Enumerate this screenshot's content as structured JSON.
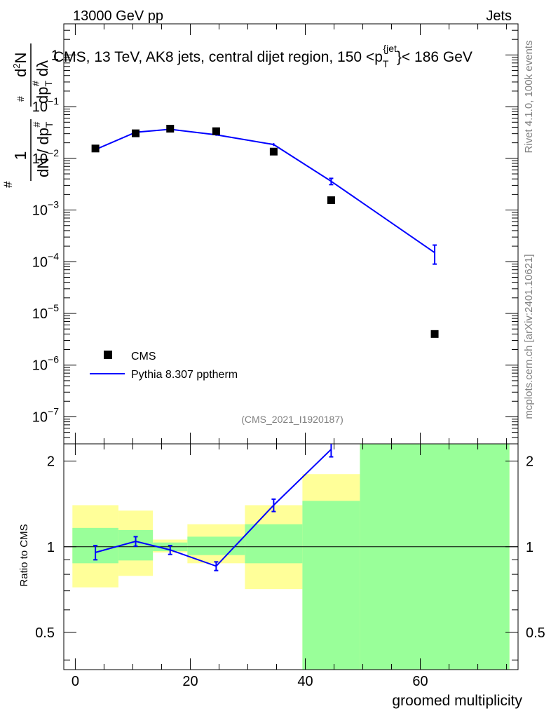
{
  "header": {
    "energy_label": "13000 GeV pp",
    "category_label": "Jets"
  },
  "side": {
    "rivet_label": "Rivet 4.1.0,  100k events",
    "site_label": "mcplots.cern.ch [arXiv:2401.10621]"
  },
  "chart_data": {
    "type": "scatter",
    "title": "CMS, 13 TeV, AK8 jets, central dijet region, 150 <p",
    "title_sub": "T",
    "title_sup": "{jet",
    "title_tail": "}< 186 GeV",
    "analysis_id": "(CMS_2021_I1920187)",
    "xlabel": "groomed multiplicity",
    "ylabel_ratio": "Ratio to CMS",
    "ylabel_parts": {
      "num1": "1",
      "den1": "dN / dp",
      "den1_sub": "T",
      "den1_sup": "#",
      "hash1": "#",
      "num2": "d",
      "num2_sup": "2",
      "num2_tail": "N",
      "den2": "dp",
      "den2_sub": "T",
      "den2_sup": "#",
      "den2_tail": "dλ",
      "hash2": "#"
    },
    "xlim": [
      -2,
      77
    ],
    "xticks": [
      0,
      20,
      40,
      60
    ],
    "ylim_log": [
      3e-08,
      4.0
    ],
    "yticks_log": [
      {
        "value": 1,
        "label": "1"
      },
      {
        "value": 0.1,
        "label": "10",
        "exp": "−1"
      },
      {
        "value": 0.01,
        "label": "10",
        "exp": "−2"
      },
      {
        "value": 0.001,
        "label": "10",
        "exp": "−3"
      },
      {
        "value": 0.0001,
        "label": "10",
        "exp": "−4"
      },
      {
        "value": 1e-05,
        "label": "10",
        "exp": "−5"
      },
      {
        "value": 1e-06,
        "label": "10",
        "exp": "−6"
      },
      {
        "value": 1e-07,
        "label": "10",
        "exp": "−7"
      }
    ],
    "ratio_ylim": [
      0.37,
      2.3
    ],
    "ratio_yticks": [
      {
        "value": 0.5,
        "label": "0.5"
      },
      {
        "value": 1,
        "label": "1"
      },
      {
        "value": 2,
        "label": "2"
      }
    ],
    "legend": [
      {
        "name": "CMS",
        "style": "marker"
      },
      {
        "name": "Pythia 8.307 pptherm",
        "style": "line",
        "color": "#0000ff"
      }
    ],
    "series": [
      {
        "name": "CMS",
        "color": "#000000",
        "x": [
          3.5,
          10.5,
          16.5,
          24.5,
          34.5,
          44.5,
          62.5
        ],
        "values": [
          0.0155,
          0.0305,
          0.0375,
          0.0335,
          0.0135,
          0.00155,
          4e-06
        ]
      },
      {
        "name": "Pythia 8.307 pptherm",
        "color": "#0000ff",
        "x": [
          3.5,
          10.5,
          16.5,
          24.5,
          34.5,
          44.5,
          62.5
        ],
        "values": [
          0.0148,
          0.032,
          0.0365,
          0.0285,
          0.0185,
          0.0036,
          0.00015
        ],
        "errors": [
          0.0008,
          0.0015,
          0.0015,
          0.0012,
          0.0012,
          0.0005,
          6e-05
        ]
      }
    ],
    "ratio": {
      "x": [
        3.5,
        10.5,
        16.5,
        24.5,
        34.5,
        44.5
      ],
      "values": [
        0.955,
        1.045,
        0.975,
        0.855,
        1.4,
        2.2
      ],
      "errors": [
        0.055,
        0.04,
        0.035,
        0.03,
        0.07,
        0.13
      ]
    },
    "uncertainty_bands": [
      {
        "x0": -0.5,
        "x1": 7.5,
        "stat_lo": 0.875,
        "stat_hi": 1.165,
        "tot_lo": 0.72,
        "tot_hi": 1.4
      },
      {
        "x0": 7.5,
        "x1": 13.5,
        "stat_lo": 0.895,
        "stat_hi": 1.145,
        "tot_lo": 0.79,
        "tot_hi": 1.34
      },
      {
        "x0": 13.5,
        "x1": 19.5,
        "stat_lo": 0.965,
        "stat_hi": 1.035,
        "tot_lo": 0.955,
        "tot_hi": 1.06
      },
      {
        "x0": 19.5,
        "x1": 29.5,
        "stat_lo": 0.935,
        "stat_hi": 1.085,
        "tot_lo": 0.875,
        "tot_hi": 1.2
      },
      {
        "x0": 29.5,
        "x1": 39.5,
        "stat_lo": 0.875,
        "stat_hi": 1.2,
        "tot_lo": 0.71,
        "tot_hi": 1.4
      },
      {
        "x0": 39.5,
        "x1": 49.5,
        "stat_lo": 0.37,
        "stat_hi": 1.45,
        "tot_lo": 0.37,
        "tot_hi": 1.8
      },
      {
        "x0": 49.5,
        "x1": 75.5,
        "stat_lo": 0.37,
        "stat_hi": 2.3,
        "tot_lo": 0.37,
        "tot_hi": 2.3
      }
    ],
    "band_colors": {
      "stat": "#99ff99",
      "total": "#ffff99"
    }
  }
}
